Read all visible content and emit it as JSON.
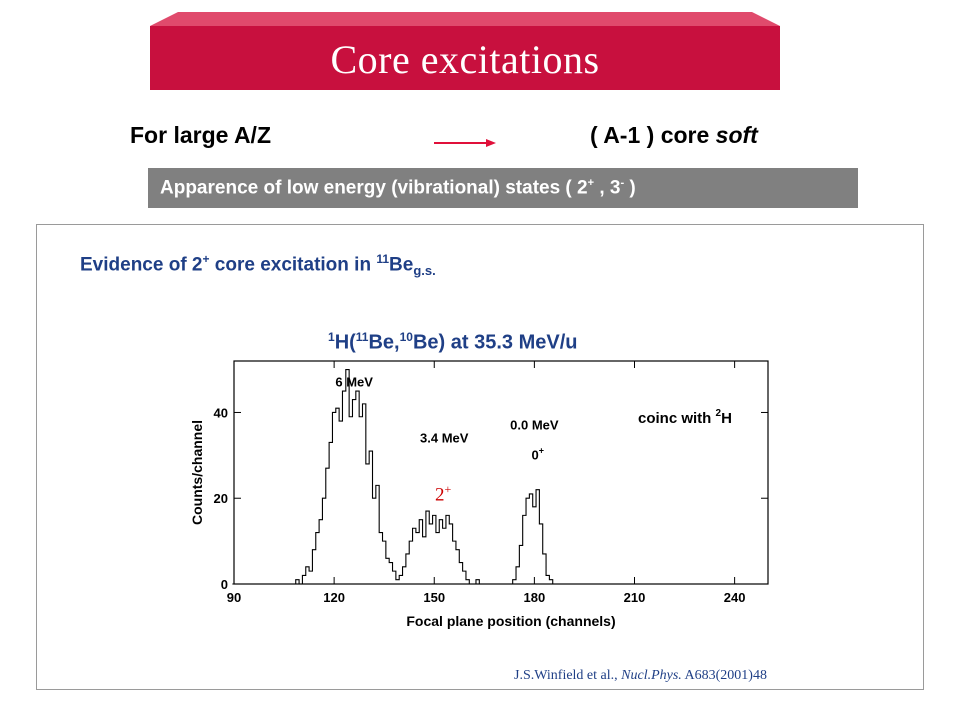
{
  "slide": {
    "title": "Core excitations",
    "line_left": "For large A/Z",
    "line_right_text": "( A-1 ) core ",
    "line_right_emph": "soft",
    "bar": {
      "text": "Apparence of low energy (vibrational) states ( 2",
      "sup1": "+",
      "mid": " , 3",
      "sup2": "-",
      "end": " )"
    },
    "evidence": {
      "text": "Evidence of 2",
      "sup1": "+",
      "mid": " core excitation in ",
      "sup2": "11",
      "element": "Be",
      "sub": "g.s."
    },
    "reaction": {
      "sup1": "1",
      "p1": "H(",
      "sup2": "11",
      "p2": "Be,",
      "sup3": "10",
      "p3": "Be)   at  35.3 MeV/u"
    },
    "marker": {
      "text": "2",
      "sup": "+"
    },
    "citation": {
      "authors": "J.S.Winfield et al., ",
      "journal": "Nucl.Phys.",
      "ref": " A683(2001)48"
    }
  },
  "colors": {
    "banner": "#c8103e",
    "bar": "#808080",
    "blue_text": "#1f3f86",
    "marker": "#cc0000",
    "arrow": "#e0103a"
  },
  "chart_data": {
    "type": "line",
    "xlabel": "Focal plane position (channels)",
    "ylabel": "Counts/channel",
    "xlim": [
      90,
      250
    ],
    "ylim": [
      0,
      52
    ],
    "xticks": [
      90,
      120,
      150,
      180,
      210,
      240
    ],
    "yticks": [
      0,
      20,
      40
    ],
    "legend_text": "coinc with ",
    "legend_sup": "2",
    "legend_el": "H",
    "annotations": [
      {
        "text": "6 MeV",
        "x": 126,
        "y": 46
      },
      {
        "text": "3.4 MeV",
        "x": 153,
        "y": 33
      },
      {
        "text": "0.0 MeV",
        "x": 180,
        "y": 36
      },
      {
        "text": "0",
        "sup": "+",
        "x": 181,
        "y": 29
      }
    ],
    "x": [
      90,
      91,
      92,
      93,
      94,
      95,
      96,
      97,
      98,
      99,
      100,
      101,
      102,
      103,
      104,
      105,
      106,
      107,
      108,
      109,
      110,
      111,
      112,
      113,
      114,
      115,
      116,
      117,
      118,
      119,
      120,
      121,
      122,
      123,
      124,
      125,
      126,
      127,
      128,
      129,
      130,
      131,
      132,
      133,
      134,
      135,
      136,
      137,
      138,
      139,
      140,
      141,
      142,
      143,
      144,
      145,
      146,
      147,
      148,
      149,
      150,
      151,
      152,
      153,
      154,
      155,
      156,
      157,
      158,
      159,
      160,
      161,
      162,
      163,
      164,
      165,
      166,
      167,
      168,
      169,
      170,
      171,
      172,
      173,
      174,
      175,
      176,
      177,
      178,
      179,
      180,
      181,
      182,
      183,
      184,
      185,
      186,
      187,
      188,
      189,
      190,
      191,
      192,
      193,
      194,
      195,
      196,
      197,
      198,
      199,
      200,
      201,
      202,
      203,
      204,
      205,
      206,
      207,
      208,
      209,
      210,
      211,
      212,
      213,
      214,
      215,
      216,
      217,
      218,
      219,
      220,
      221,
      222,
      223,
      224,
      225,
      226,
      227,
      228,
      229,
      230,
      231,
      232,
      233,
      234,
      235,
      236,
      237,
      238,
      239,
      240,
      241,
      242,
      243,
      244,
      245,
      246,
      247,
      248,
      249
    ],
    "y": [
      0,
      0,
      0,
      0,
      0,
      0,
      0,
      0,
      0,
      0,
      0,
      0,
      0,
      0,
      0,
      0,
      0,
      0,
      0,
      1,
      0,
      2,
      4,
      3,
      8,
      12,
      15,
      20,
      27,
      33,
      40,
      41,
      38,
      45,
      50,
      39,
      43,
      45,
      39,
      42,
      28,
      31,
      20,
      23,
      12,
      10,
      6,
      5,
      3,
      1,
      2,
      4,
      7,
      10,
      13,
      12,
      15,
      11,
      17,
      14,
      16,
      12,
      15,
      13,
      16,
      14,
      10,
      8,
      5,
      3,
      1,
      0,
      0,
      1,
      0,
      0,
      0,
      0,
      0,
      0,
      0,
      0,
      0,
      0,
      1,
      4,
      9,
      16,
      20,
      21,
      18,
      22,
      14,
      7,
      2,
      1,
      0,
      0,
      0,
      0,
      0,
      0,
      0,
      0,
      0,
      0,
      0,
      0,
      0,
      0,
      0,
      0,
      0,
      0,
      0,
      0,
      0,
      0,
      0,
      0,
      0,
      0,
      0,
      0,
      0,
      0,
      0,
      0,
      0,
      0,
      0,
      0,
      0,
      0,
      0,
      0,
      0,
      0,
      0,
      0,
      0,
      0,
      0,
      0,
      0,
      0,
      0,
      0,
      0,
      0,
      0,
      0,
      0,
      0,
      0,
      0,
      0,
      0,
      0,
      0
    ]
  }
}
